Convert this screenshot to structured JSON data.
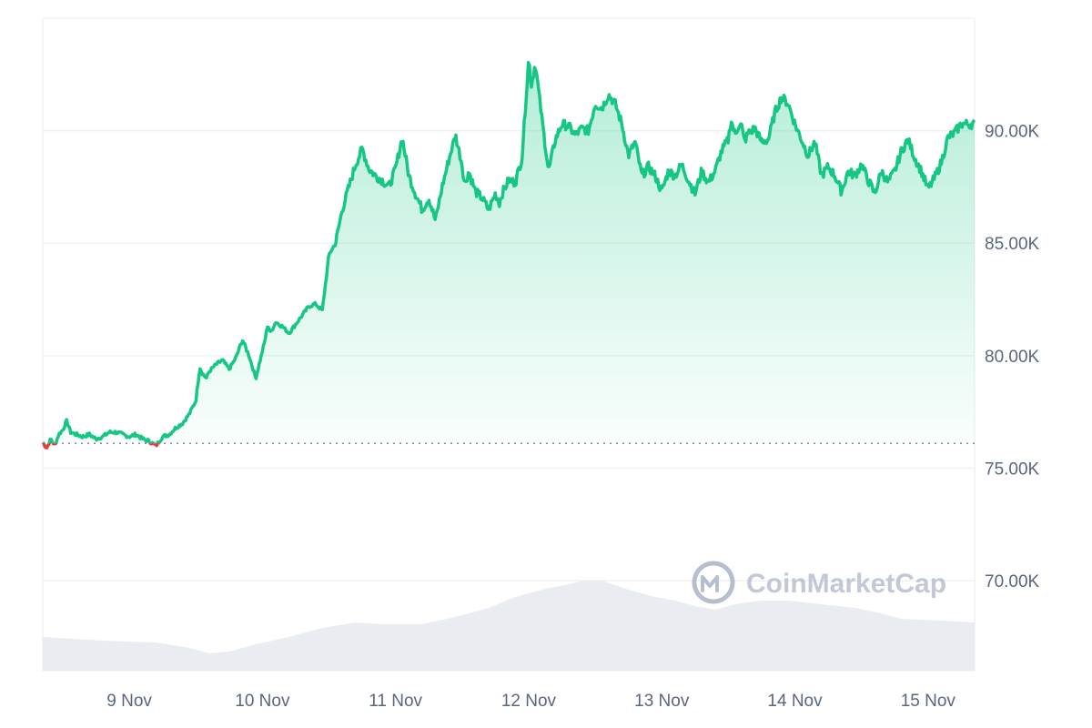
{
  "watermark": {
    "text": "CoinMarketCap",
    "icon": "coinmarketcap-logo-icon"
  },
  "colors": {
    "up": "#16c784",
    "down": "#ea3943",
    "grid": "#eff2f5",
    "volume": "#e9ecf1",
    "axis_text": "#58667e",
    "baseline": "#808a9d"
  },
  "chart_data": {
    "type": "line",
    "title": "",
    "xlabel": "",
    "ylabel": "",
    "x_tick_labels": [
      "9 Nov",
      "10 Nov",
      "11 Nov",
      "12 Nov",
      "13 Nov",
      "14 Nov",
      "15 Nov"
    ],
    "x_tick_days": [
      9,
      10,
      11,
      12,
      13,
      14,
      15
    ],
    "y_tick_values": [
      70000,
      75000,
      80000,
      85000,
      90000
    ],
    "y_tick_labels": [
      "70.00K",
      "75.00K",
      "80.00K",
      "85.00K",
      "90.00K"
    ],
    "xlim_days": [
      8.35,
      15.35
    ],
    "ylim": [
      66000,
      95000
    ],
    "baseline_value": 76100,
    "grid": true,
    "series": [
      {
        "values_x_days": [
          8.35,
          8.38,
          8.41,
          8.44,
          8.47,
          8.5,
          8.53,
          8.56,
          8.6,
          8.65,
          8.7,
          8.75,
          8.8,
          8.85,
          8.9,
          8.95,
          9.0,
          9.05,
          9.1,
          9.15,
          9.2,
          9.25,
          9.3,
          9.35,
          9.4,
          9.45,
          9.5,
          9.53,
          9.55,
          9.58,
          9.6,
          9.65,
          9.7,
          9.75,
          9.8,
          9.85,
          9.9,
          9.95,
          10.0,
          10.02,
          10.04,
          10.06,
          10.1,
          10.15,
          10.2,
          10.25,
          10.3,
          10.35,
          10.4,
          10.45,
          10.5,
          10.55,
          10.6,
          10.65,
          10.7,
          10.75,
          10.8,
          10.85,
          10.9,
          10.95,
          11.0,
          11.05,
          11.1,
          11.15,
          11.2,
          11.25,
          11.3,
          11.35,
          11.4,
          11.45,
          11.5,
          11.52,
          11.55,
          11.6,
          11.65,
          11.7,
          11.75,
          11.78,
          11.8,
          11.85,
          11.9,
          11.95,
          12.0,
          12.02,
          12.05,
          12.1,
          12.15,
          12.2,
          12.25,
          12.3,
          12.35,
          12.4,
          12.45,
          12.5,
          12.55,
          12.6,
          12.65,
          12.7,
          12.75,
          12.8,
          12.85,
          12.9,
          12.95,
          13.0,
          13.05,
          13.1,
          13.15,
          13.2,
          13.25,
          13.3,
          13.35,
          13.4,
          13.45,
          13.5,
          13.52,
          13.55,
          13.58,
          13.6,
          13.62,
          13.65,
          13.7,
          13.75,
          13.8,
          13.85,
          13.9,
          13.95,
          14.0,
          14.05,
          14.1,
          14.15,
          14.2,
          14.25,
          14.3,
          14.35,
          14.4,
          14.45,
          14.5,
          14.55,
          14.6,
          14.65,
          14.7,
          14.75,
          14.8,
          14.85,
          14.9,
          14.95,
          15.0,
          15.05,
          15.1,
          15.15,
          15.2,
          15.25,
          15.3,
          15.35
        ],
        "values": [
          76150,
          75900,
          76300,
          76000,
          76500,
          76700,
          77100,
          76600,
          76500,
          76400,
          76500,
          76300,
          76400,
          76600,
          76600,
          76500,
          76400,
          76500,
          76300,
          76200,
          76000,
          76400,
          76500,
          76800,
          77000,
          77400,
          78000,
          79500,
          79200,
          79000,
          79300,
          79600,
          79800,
          79400,
          79900,
          80700,
          80000,
          79000,
          80200,
          80700,
          81400,
          81000,
          81500,
          81300,
          81000,
          81400,
          81800,
          82200,
          82300,
          82000,
          84500,
          85000,
          86500,
          87500,
          88500,
          89200,
          88300,
          88000,
          87800,
          87500,
          88300,
          89700,
          88000,
          87200,
          86500,
          87000,
          86000,
          87500,
          88700,
          89800,
          88500,
          87600,
          88200,
          87300,
          87000,
          86500,
          87200,
          86800,
          87200,
          87800,
          87700,
          88800,
          93200,
          92000,
          93000,
          90500,
          88200,
          89600,
          90300,
          90200,
          89800,
          90100,
          90000,
          91200,
          91000,
          91600,
          91200,
          90300,
          88900,
          89500,
          88000,
          88400,
          88000,
          87300,
          88200,
          88000,
          88500,
          87800,
          87200,
          88200,
          87700,
          88200,
          89100,
          89600,
          90500,
          89800,
          90300,
          90200,
          89500,
          89900,
          90100,
          89500,
          89600,
          90800,
          91500,
          91200,
          90300,
          89600,
          88900,
          89500,
          88000,
          88400,
          88000,
          87300,
          88200,
          88000,
          88500,
          87800,
          87200,
          88200,
          87700,
          88200,
          89100,
          89600,
          88800,
          88200,
          87400,
          87900,
          88600,
          89700,
          89900,
          90300,
          90300,
          90300,
          90300,
          90300
        ]
      }
    ]
  }
}
